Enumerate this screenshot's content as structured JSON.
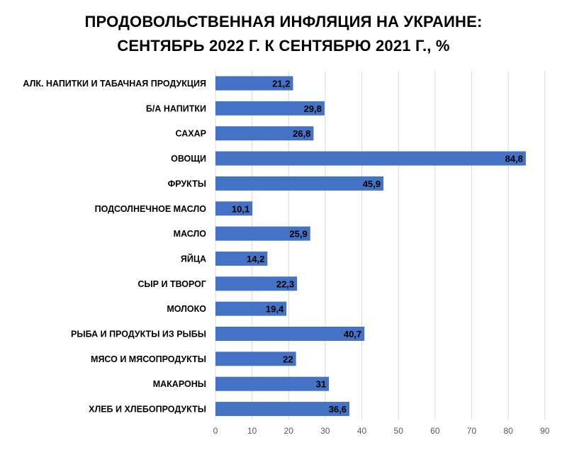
{
  "chart_data": {
    "type": "bar",
    "orientation": "horizontal",
    "title": "ПРОДОВОЛЬСТВЕННАЯ ИНФЛЯЦИЯ НА УКРАИНЕ:",
    "subtitle": "СЕНТЯБРЬ 2022 Г. К СЕНТЯБРЮ 2021 Г., %",
    "categories": [
      "АЛК. НАПИТКИ И ТАБАЧНАЯ ПРОДУКЦИЯ",
      "Б/А НАПИТКИ",
      "САХАР",
      "ОВОЩИ",
      "ФРУКТЫ",
      "ПОДСОЛНЕЧНОЕ МАСЛО",
      "МАСЛО",
      "ЯЙЦА",
      "СЫР И ТВОРОГ",
      "МОЛОКО",
      "РЫБА И ПРОДУКТЫ ИЗ РЫБЫ",
      "МЯСО И МЯСОПРОДУКТЫ",
      "МАКАРОНЫ",
      "ХЛЕБ И ХЛЕБОПРОДУКТЫ"
    ],
    "values": [
      21.2,
      29.8,
      26.8,
      84.8,
      45.9,
      10.1,
      25.9,
      14.2,
      22.3,
      19.4,
      40.7,
      22,
      31,
      36.6
    ],
    "value_labels": [
      "21,2",
      "29,8",
      "26,8",
      "84,8",
      "45,9",
      "10,1",
      "25,9",
      "14,2",
      "22,3",
      "19,4",
      "40,7",
      "22",
      "31",
      "36,6"
    ],
    "x_ticks": [
      "0",
      "10",
      "20",
      "30",
      "40",
      "50",
      "60",
      "70",
      "80",
      "90"
    ],
    "xlim": [
      0,
      90
    ],
    "xlabel": "",
    "ylabel": "",
    "grid": true,
    "legend": false,
    "bar_color": "#4472c4",
    "grid_color": "#d9d9d9"
  }
}
